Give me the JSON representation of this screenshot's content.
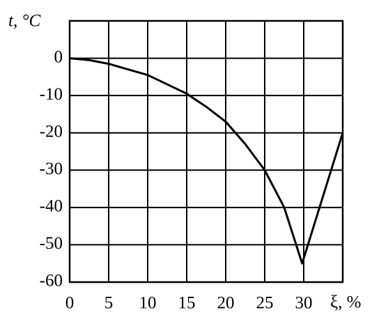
{
  "chart_data": {
    "type": "line",
    "y_label": "t, °C",
    "x_label": "ξ, %",
    "x": [
      0,
      2.5,
      5,
      7.5,
      10,
      12.5,
      15,
      17.5,
      20,
      22.5,
      25,
      27.5,
      29.8,
      35
    ],
    "values": [
      0,
      -0.5,
      -1.5,
      -3,
      -4.5,
      -7,
      -9.5,
      -13,
      -17,
      -23,
      -30,
      -40,
      -55,
      -20
    ],
    "color": "#000000",
    "xlim": [
      0,
      35
    ],
    "xticks": [
      0,
      5,
      10,
      15,
      20,
      25,
      30
    ],
    "ylim": [
      -60,
      10
    ],
    "yticks": [
      0,
      -10,
      -20,
      -30,
      -40,
      -50,
      -60
    ],
    "grid": true
  }
}
